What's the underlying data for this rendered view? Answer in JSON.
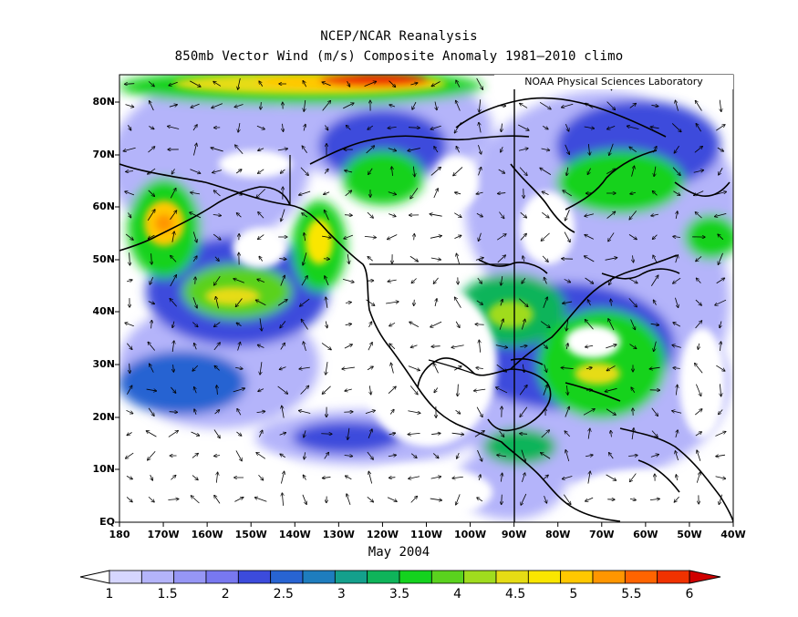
{
  "title": {
    "line1": "NCEP/NCAR Reanalysis",
    "line2": "850mb Vector Wind (m/s) Composite Anomaly 1981–2010 climo"
  },
  "credit": "NOAA Physical Sciences Laboratory",
  "date_label": "May 2004",
  "axes": {
    "lat_labels": [
      "80N",
      "70N",
      "60N",
      "50N",
      "40N",
      "30N",
      "20N",
      "10N",
      "EQ"
    ],
    "lon_labels": [
      "180",
      "170W",
      "160W",
      "150W",
      "140W",
      "130W",
      "120W",
      "110W",
      "100W",
      "90W",
      "80W",
      "70W",
      "60W",
      "50W",
      "40W"
    ]
  },
  "colorbar": {
    "labels": [
      "1",
      "1.5",
      "2",
      "2.5",
      "3",
      "3.5",
      "4",
      "4.5",
      "5",
      "5.5",
      "6"
    ],
    "colors": [
      "#d6d6ff",
      "#b4b4fa",
      "#9696f5",
      "#7878f0",
      "#3c4bdc",
      "#2864d2",
      "#1e7dbe",
      "#14a08c",
      "#0fb45a",
      "#14d21e",
      "#5ad21e",
      "#a0dc1e",
      "#e6dc14",
      "#fae600",
      "#ffc800",
      "#ff9600",
      "#ff6400",
      "#f03200"
    ]
  },
  "colors": {
    "land_outline": "#000000",
    "ocean_bg": "#ffffff"
  }
}
